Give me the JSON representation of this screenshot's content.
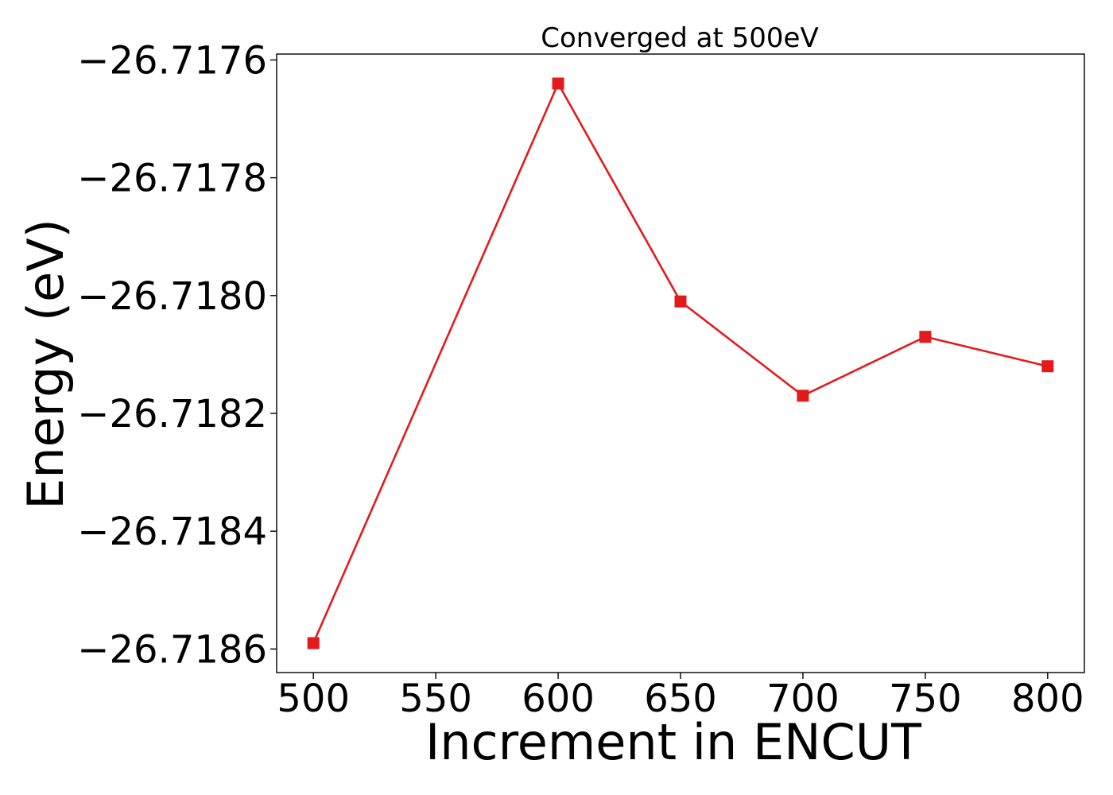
{
  "chart_data": {
    "type": "line",
    "title": "Converged at 500eV",
    "xlabel": "Increment in ENCUT",
    "ylabel": "Energy (eV)",
    "x": [
      500,
      600,
      650,
      700,
      750,
      800
    ],
    "series": [
      {
        "values": [
          -26.71859,
          -26.71764,
          -26.71801,
          -26.71817,
          -26.71807,
          -26.71812
        ],
        "color": "#e31a1c",
        "marker": "square"
      }
    ],
    "xlim": [
      485,
      815
    ],
    "ylim": [
      -26.71864,
      -26.71759
    ],
    "xticks": [
      500,
      550,
      600,
      650,
      700,
      750,
      800
    ],
    "yticks": [
      -26.7186,
      -26.7184,
      -26.7182,
      -26.718,
      -26.7178,
      -26.7176
    ],
    "xtick_labels": [
      "500",
      "550",
      "600",
      "650",
      "700",
      "750",
      "800"
    ],
    "ytick_labels": [
      "−26.7186",
      "−26.7184",
      "−26.7182",
      "−26.7180",
      "−26.7178",
      "−26.7176"
    ],
    "grid": false,
    "legend": "none"
  }
}
